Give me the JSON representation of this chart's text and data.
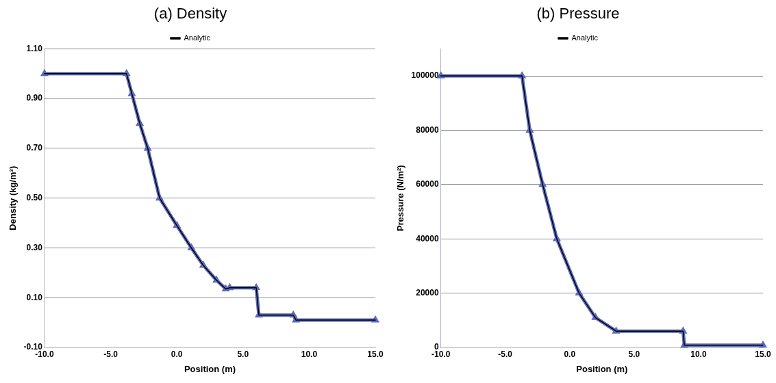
{
  "chart_data": [
    {
      "type": "line",
      "title": "(a) Density",
      "xlabel": "Position (m)",
      "ylabel": "Density (kg/m³)",
      "xlim": [
        -10,
        15
      ],
      "xticks": [
        {
          "value": -10,
          "label": "-10.0"
        },
        {
          "value": -5,
          "label": "-5.0"
        },
        {
          "value": 0,
          "label": "0.0"
        },
        {
          "value": 5,
          "label": "5.0"
        },
        {
          "value": 10,
          "label": "10.0"
        },
        {
          "value": 15,
          "label": "15.0"
        }
      ],
      "ylim": [
        -0.1,
        1.1
      ],
      "yticks": [
        {
          "value": -0.1,
          "label": "-0.10"
        },
        {
          "value": 0.1,
          "label": "0.10"
        },
        {
          "value": 0.3,
          "label": "0.30"
        },
        {
          "value": 0.5,
          "label": "0.50"
        },
        {
          "value": 0.7,
          "label": "0.70"
        },
        {
          "value": 0.9,
          "label": "0.90"
        },
        {
          "value": 1.1,
          "label": "1.10"
        }
      ],
      "grid": "y",
      "legend": "top",
      "series": [
        {
          "color": "#5b6bc0",
          "marker": "triangle",
          "x": [
            -10,
            -3.8,
            -3.4,
            -2.8,
            -2.2,
            -1.3,
            0,
            1.1,
            2,
            3,
            3.7,
            4,
            6,
            6.2,
            8.8,
            9,
            15
          ],
          "values": [
            1,
            1,
            0.92,
            0.8,
            0.7,
            0.5,
            0.39,
            0.3,
            0.23,
            0.17,
            0.135,
            0.14,
            0.14,
            0.03,
            0.03,
            0.01,
            0.01
          ]
        },
        {
          "name": "Analytic",
          "color": "#000000",
          "x": [
            -10,
            -3.8,
            -3.4,
            -2.8,
            -2.2,
            -1.3,
            0,
            1.1,
            2,
            3,
            3.7,
            4,
            6,
            6.2,
            8.8,
            9,
            15
          ],
          "values": [
            1,
            1,
            0.92,
            0.8,
            0.7,
            0.5,
            0.39,
            0.3,
            0.23,
            0.17,
            0.135,
            0.14,
            0.14,
            0.03,
            0.03,
            0.01,
            0.01
          ]
        }
      ]
    },
    {
      "type": "line",
      "title": "(b) Pressure",
      "xlabel": "Position (m)",
      "ylabel": "Pressure (N/m²)",
      "xlim": [
        -10,
        15
      ],
      "xticks": [
        {
          "value": -10,
          "label": "-10.0"
        },
        {
          "value": -5,
          "label": "-5.0"
        },
        {
          "value": 0,
          "label": "0.0"
        },
        {
          "value": 5,
          "label": "5.0"
        },
        {
          "value": 10,
          "label": "10.0"
        },
        {
          "value": 15,
          "label": "15.0"
        }
      ],
      "ylim": [
        0,
        110000
      ],
      "yticks": [
        0,
        20000,
        40000,
        60000,
        80000,
        100000
      ],
      "grid": "y",
      "legend": "top",
      "series": [
        {
          "color": "#5b6bc0",
          "marker": "triangle",
          "x": [
            -10,
            -3.7,
            -3.1,
            -2.1,
            -1,
            0.73,
            2,
            3.6,
            8.8,
            8.9,
            15
          ],
          "values": [
            100000,
            100000,
            80000,
            60000,
            40000,
            20000,
            11000,
            6000,
            6000,
            800,
            800
          ]
        },
        {
          "name": "Analytic",
          "color": "#000000",
          "x": [
            -10,
            -3.7,
            -3.1,
            -2.1,
            -1,
            0.73,
            2,
            3.6,
            8.8,
            8.9,
            15
          ],
          "values": [
            100000,
            100000,
            80000,
            60000,
            40000,
            20000,
            11000,
            6000,
            6000,
            800,
            800
          ]
        }
      ]
    }
  ]
}
